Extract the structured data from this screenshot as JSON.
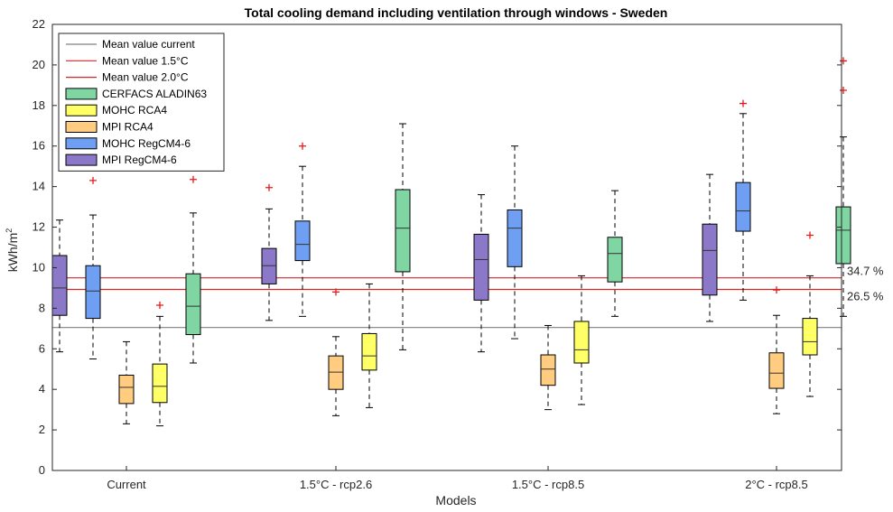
{
  "chart_data": {
    "type": "box",
    "title": "Total cooling demand including ventilation through windows - Sweden",
    "xlabel": "Models",
    "ylabel": "kWh/m",
    "ylabel_superscript": "2",
    "ylim": [
      0,
      22
    ],
    "yticks": [
      "0",
      "2",
      "4",
      "6",
      "8",
      "10",
      "12",
      "14",
      "16",
      "18",
      "20",
      "22"
    ],
    "categories": [
      "Current",
      "1.5°C - rcp2.6",
      "1.5°C - rcp8.5",
      "2°C - rcp8.5"
    ],
    "legend_position": "top-left",
    "reference_lines": [
      {
        "name": "Mean value current",
        "y": 7.05,
        "color": "#808080"
      },
      {
        "name": "Mean value 1.5°C",
        "y": 8.93,
        "color": "#d62728"
      },
      {
        "name": "Mean value 2.0°C",
        "y": 9.5,
        "color": "#d62728"
      }
    ],
    "annotations": [
      {
        "text": "34.7 %",
        "y": 9.5
      },
      {
        "text": "26.5 %",
        "y": 8.93
      }
    ],
    "series": [
      {
        "name": "CERFACS ALADIN63",
        "color": "#7fd6a3",
        "order": 5,
        "boxes": [
          {
            "min": 5.3,
            "q1": 6.7,
            "median": 8.1,
            "q3": 9.7,
            "max": 12.7,
            "outliers": [
              14.35
            ]
          },
          {
            "min": 5.95,
            "q1": 9.8,
            "median": 11.95,
            "q3": 13.85,
            "max": 17.1,
            "outliers": []
          },
          {
            "min": 7.6,
            "q1": 9.3,
            "median": 10.7,
            "q3": 11.5,
            "max": 13.8,
            "outliers": []
          },
          {
            "min": 7.6,
            "q1": 10.2,
            "median": 11.85,
            "q3": 13.0,
            "max": 16.45,
            "outliers": [
              18.75,
              20.2
            ]
          }
        ]
      },
      {
        "name": "MOHC RCA4",
        "color": "#ffff66",
        "order": 4,
        "boxes": [
          {
            "min": 2.2,
            "q1": 3.35,
            "median": 4.15,
            "q3": 5.25,
            "max": 7.6,
            "outliers": [
              8.15
            ]
          },
          {
            "min": 3.1,
            "q1": 4.95,
            "median": 5.65,
            "q3": 6.75,
            "max": 9.2,
            "outliers": []
          },
          {
            "min": 3.25,
            "q1": 5.3,
            "median": 5.95,
            "q3": 7.35,
            "max": 9.6,
            "outliers": []
          },
          {
            "min": 3.65,
            "q1": 5.7,
            "median": 6.35,
            "q3": 7.5,
            "max": 9.6,
            "outliers": [
              11.6
            ]
          }
        ]
      },
      {
        "name": "MPI RCA4",
        "color": "#ffcc80",
        "order": 3,
        "boxes": [
          {
            "min": 2.3,
            "q1": 3.3,
            "median": 4.1,
            "q3": 4.7,
            "max": 6.35,
            "outliers": []
          },
          {
            "min": 2.7,
            "q1": 4.0,
            "median": 4.85,
            "q3": 5.65,
            "max": 6.6,
            "outliers": [
              8.8
            ]
          },
          {
            "min": 3.0,
            "q1": 4.2,
            "median": 5.0,
            "q3": 5.7,
            "max": 7.15,
            "outliers": []
          },
          {
            "min": 2.8,
            "q1": 4.05,
            "median": 4.8,
            "q3": 5.8,
            "max": 7.65,
            "outliers": [
              8.9
            ]
          }
        ]
      },
      {
        "name": "MOHC RegCM4-6",
        "color": "#6f9ff2",
        "order": 2,
        "boxes": [
          {
            "min": 5.5,
            "q1": 7.5,
            "median": 8.85,
            "q3": 10.1,
            "max": 12.6,
            "outliers": [
              14.3
            ]
          },
          {
            "min": 7.6,
            "q1": 10.35,
            "median": 11.15,
            "q3": 12.3,
            "max": 15.0,
            "outliers": [
              16.0
            ]
          },
          {
            "min": 6.5,
            "q1": 10.05,
            "median": 11.95,
            "q3": 12.85,
            "max": 16.0,
            "outliers": []
          },
          {
            "min": 8.4,
            "q1": 11.8,
            "median": 12.8,
            "q3": 14.2,
            "max": 17.6,
            "outliers": [
              18.1
            ]
          }
        ]
      },
      {
        "name": "MPI RegCM4-6",
        "color": "#8b78c8",
        "order": 1,
        "boxes": [
          {
            "min": 5.85,
            "q1": 7.65,
            "median": 9.0,
            "q3": 10.6,
            "max": 12.35,
            "outliers": []
          },
          {
            "min": 7.4,
            "q1": 9.2,
            "median": 10.1,
            "q3": 10.95,
            "max": 12.9,
            "outliers": [
              13.95
            ]
          },
          {
            "min": 5.85,
            "q1": 8.4,
            "median": 10.4,
            "q3": 11.65,
            "max": 13.6,
            "outliers": []
          },
          {
            "min": 7.35,
            "q1": 8.65,
            "median": 10.85,
            "q3": 12.15,
            "max": 14.6,
            "outliers": []
          }
        ]
      }
    ]
  }
}
